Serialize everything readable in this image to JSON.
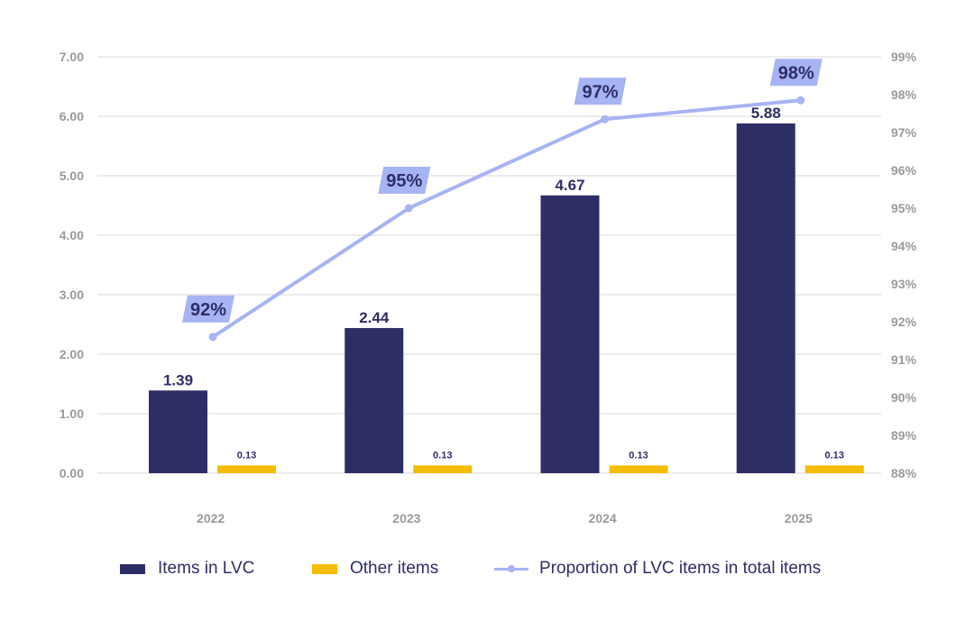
{
  "chart_data": {
    "type": "bar",
    "categories": [
      "2022",
      "2023",
      "2024",
      "2025"
    ],
    "series": [
      {
        "name": "Items in LVC",
        "type": "bar",
        "axis": "left",
        "values": [
          1.39,
          2.44,
          4.67,
          5.88
        ],
        "labels": [
          "1.39",
          "2.44",
          "4.67",
          "5.88"
        ],
        "color": "#2e2e67"
      },
      {
        "name": "Other items",
        "type": "bar",
        "axis": "left",
        "values": [
          0.13,
          0.13,
          0.13,
          0.13
        ],
        "labels": [
          "0.13",
          "0.13",
          "0.13",
          "0.13"
        ],
        "color": "#f5bd00"
      },
      {
        "name": "Proportion of LVC items in total items",
        "type": "line",
        "axis": "right",
        "values": [
          0.916,
          0.95,
          0.9735,
          0.9785
        ],
        "labels": [
          "92%",
          "95%",
          "97%",
          "98%"
        ],
        "color": "#a7b4f3"
      }
    ],
    "left_axis": {
      "min": 0,
      "max": 7,
      "ticks": [
        "0.00",
        "1.00",
        "2.00",
        "3.00",
        "4.00",
        "5.00",
        "6.00",
        "7.00"
      ]
    },
    "right_axis": {
      "min": 0.88,
      "max": 0.99,
      "ticks": [
        "88%",
        "89%",
        "90%",
        "91%",
        "92%",
        "93%",
        "94%",
        "95%",
        "96%",
        "97%",
        "98%",
        "99%"
      ]
    },
    "grid": true,
    "legend_position": "bottom",
    "label_bg_color": "#a7b4f3"
  }
}
